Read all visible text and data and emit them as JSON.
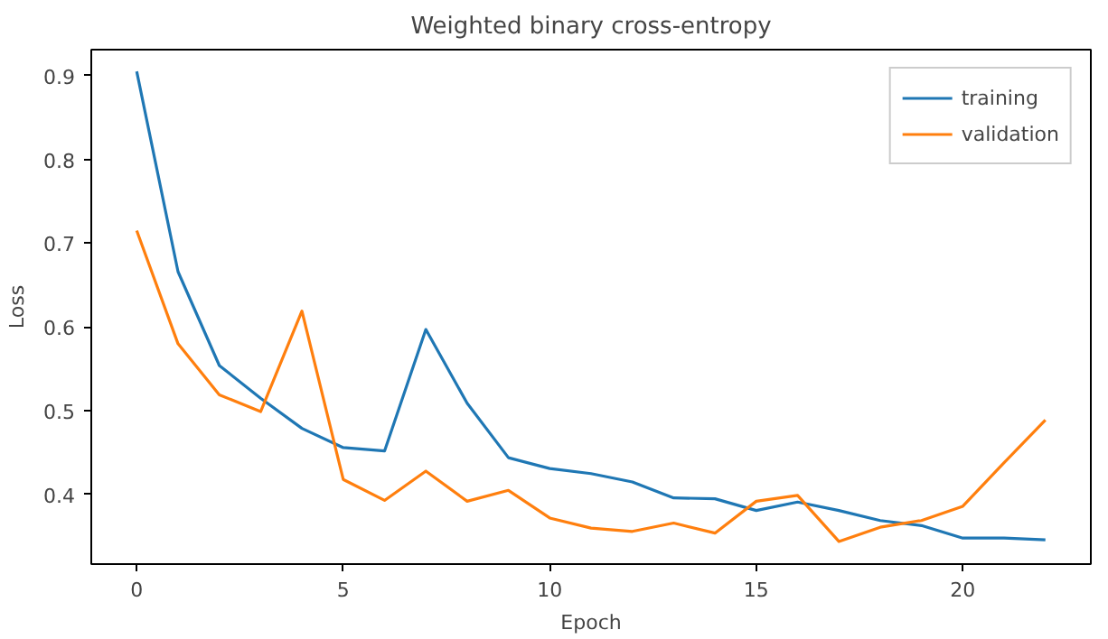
{
  "chart_data": {
    "type": "line",
    "title": "Weighted binary cross-entropy",
    "xlabel": "Epoch",
    "ylabel": "Loss",
    "x": [
      0,
      1,
      2,
      3,
      4,
      5,
      6,
      7,
      8,
      9,
      10,
      11,
      12,
      13,
      14,
      15,
      16,
      17,
      18,
      19,
      20,
      21,
      22
    ],
    "xlim": [
      -1.1,
      23.1
    ],
    "ylim": [
      0.317,
      0.931
    ],
    "xticks": [
      0,
      5,
      10,
      15,
      20
    ],
    "yticks": [
      0.4,
      0.5,
      0.6,
      0.7,
      0.8,
      0.9
    ],
    "grid": false,
    "legend": "top right",
    "marker": "none",
    "line_style": "solid",
    "series": [
      {
        "name": "training",
        "color": "#1f77b4",
        "values": [
          0.905,
          0.666,
          0.554,
          0.515,
          0.479,
          0.456,
          0.452,
          0.597,
          0.509,
          0.444,
          0.431,
          0.425,
          0.415,
          0.396,
          0.395,
          0.381,
          0.391,
          0.381,
          0.369,
          0.363,
          0.348,
          0.348,
          0.346
        ]
      },
      {
        "name": "validation",
        "color": "#ff7f0e",
        "values": [
          0.715,
          0.58,
          0.519,
          0.499,
          0.619,
          0.418,
          0.393,
          0.428,
          0.392,
          0.405,
          0.372,
          0.36,
          0.356,
          0.366,
          0.354,
          0.392,
          0.399,
          0.344,
          0.361,
          0.369,
          0.386,
          0.438,
          0.489
        ]
      }
    ]
  }
}
